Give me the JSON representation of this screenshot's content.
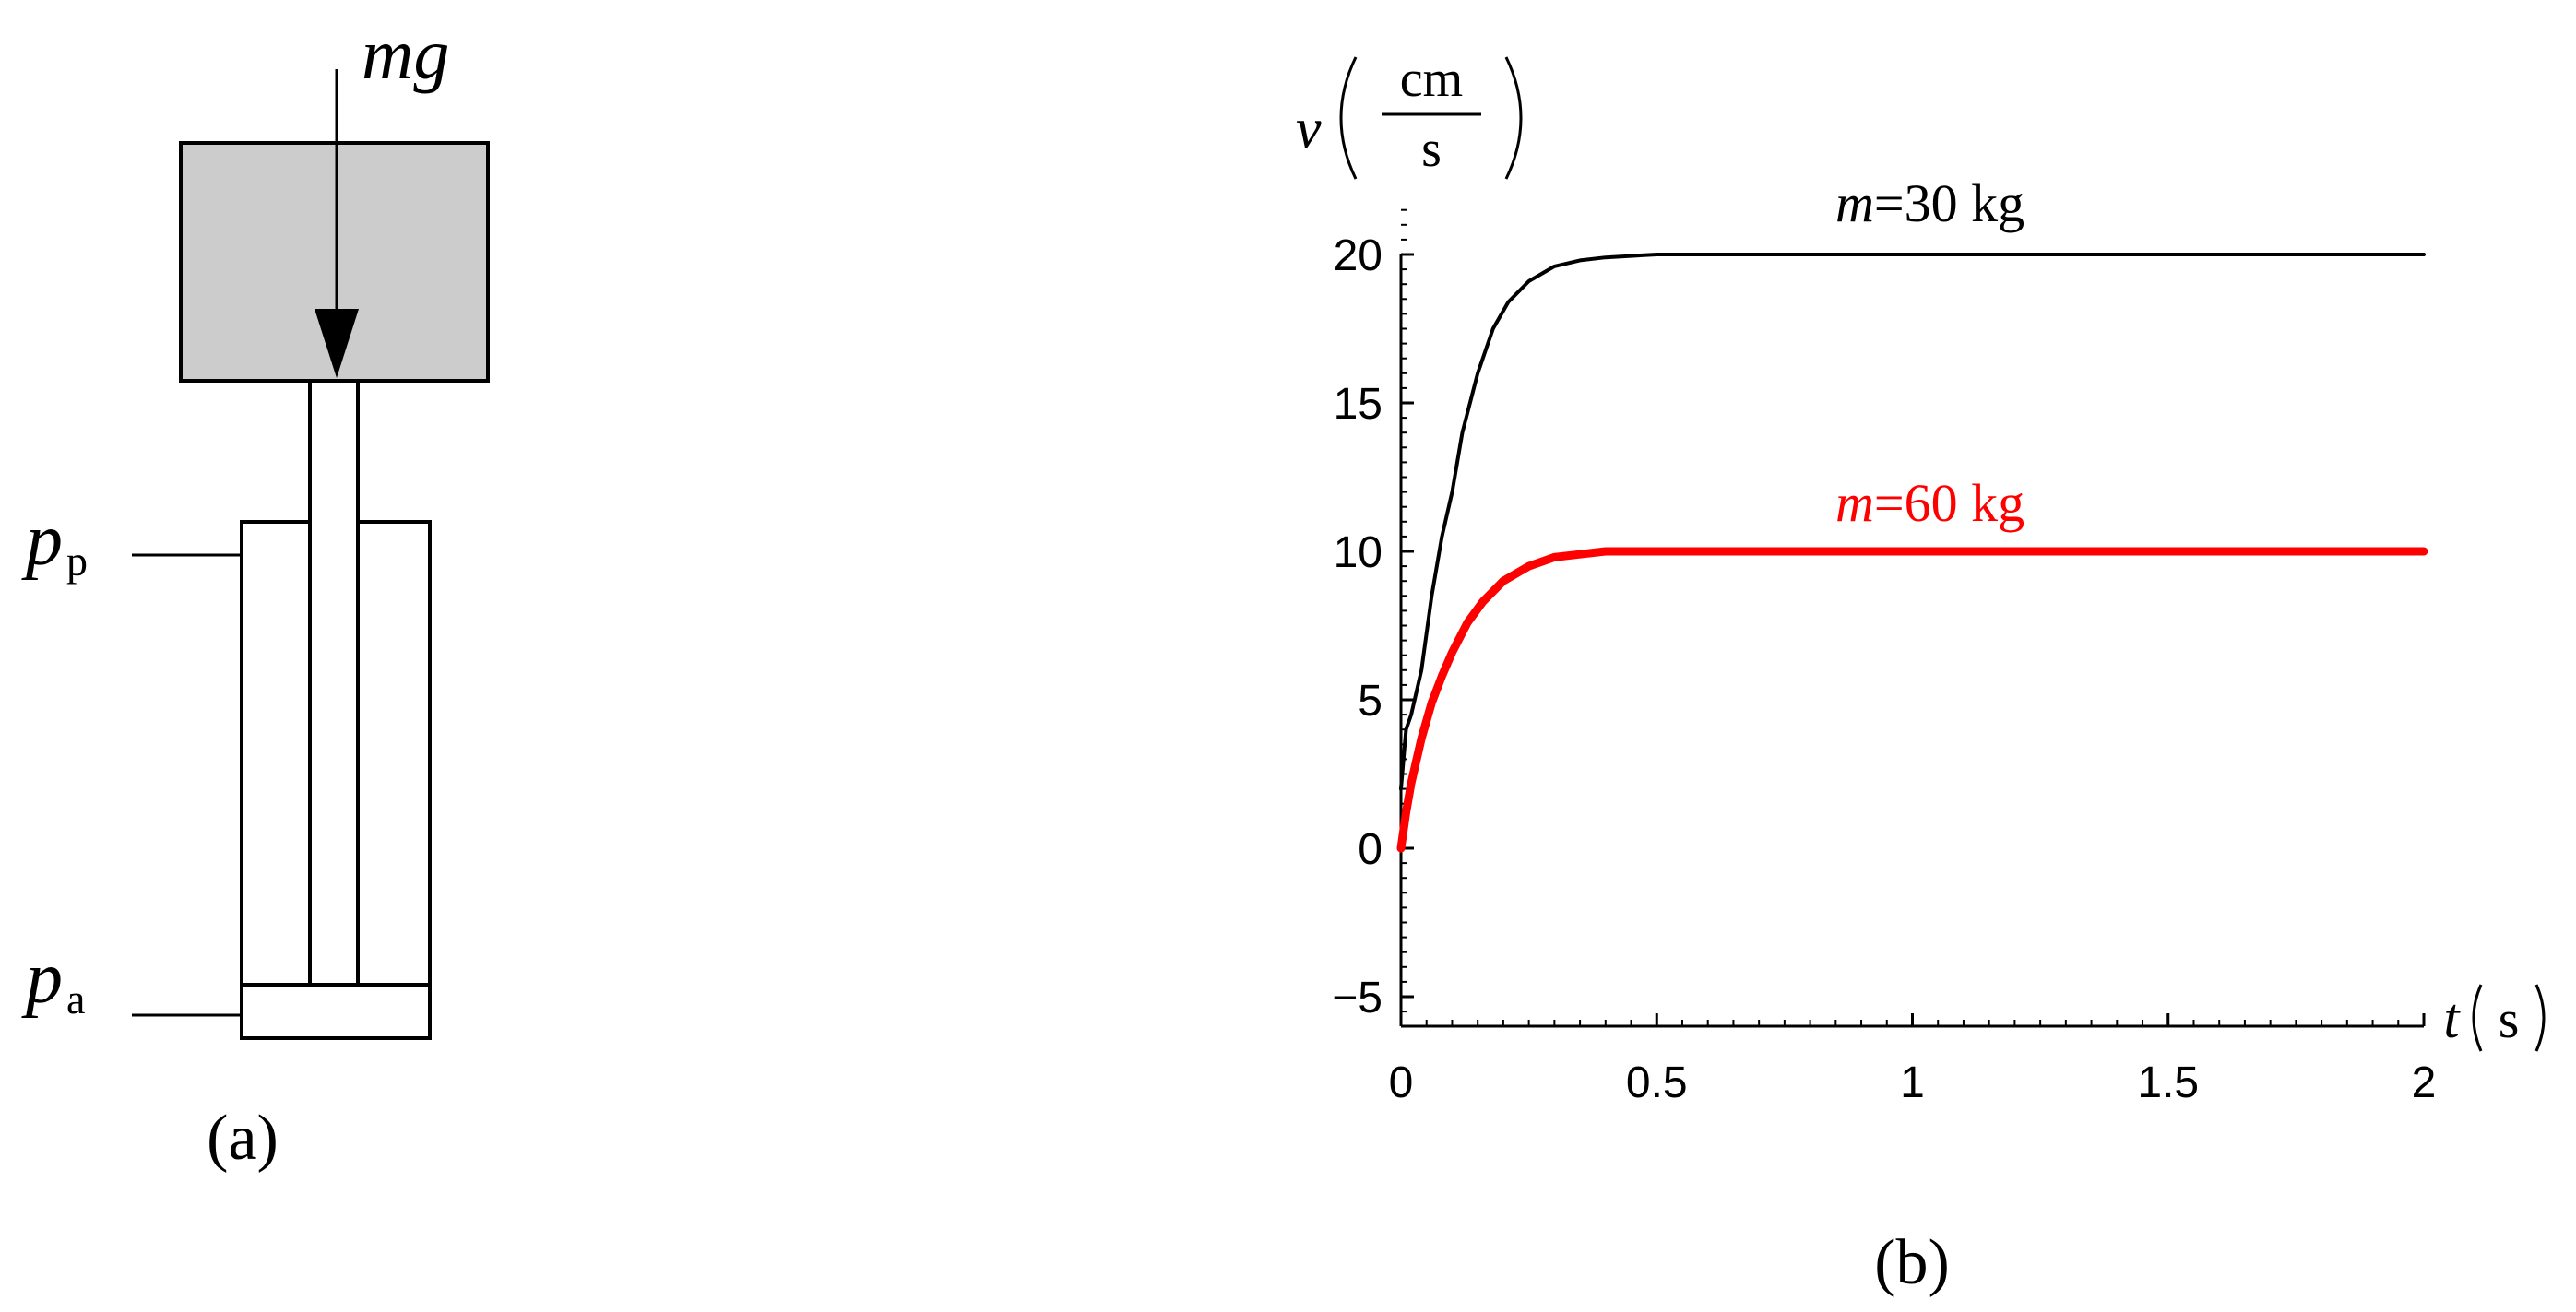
{
  "diagram": {
    "force_label": "mg",
    "pressure_top_symbol": "p",
    "pressure_top_sub": "p",
    "pressure_bottom_symbol": "p",
    "pressure_bottom_sub": "a",
    "panel_label": "(a)"
  },
  "chart_panel": {
    "panel_label": "(b)",
    "y_symbol": "v",
    "y_unit_num": "cm",
    "y_unit_den": "s",
    "x_symbol": "t",
    "x_unit": "s"
  },
  "chart_data": {
    "type": "line",
    "xlim": [
      0,
      2
    ],
    "ylim": [
      -6,
      22
    ],
    "x_ticks": [
      "0",
      "0.5",
      "1",
      "1.5",
      "2"
    ],
    "y_ticks": [
      "−5",
      "0",
      "5",
      "10",
      "15",
      "20"
    ],
    "grid": false,
    "series": [
      {
        "name": "m=30 kg",
        "label_m": "m",
        "label_rest": "=30 kg",
        "color": "#000000",
        "x": [
          0,
          0.01,
          0.02,
          0.04,
          0.06,
          0.08,
          0.1,
          0.12,
          0.15,
          0.18,
          0.21,
          0.25,
          0.3,
          0.35,
          0.4,
          0.5,
          0.6,
          0.8,
          1.0,
          1.5,
          2.0
        ],
        "y": [
          2,
          4,
          4.5,
          6,
          8.5,
          10.5,
          12,
          14,
          16,
          17.5,
          18.4,
          19.1,
          19.6,
          19.8,
          19.9,
          20,
          20,
          20,
          20,
          20,
          20
        ]
      },
      {
        "name": "m=60 kg",
        "label_m": "m",
        "label_rest": "=60 kg",
        "color": "#ff0000",
        "x": [
          0,
          0.01,
          0.02,
          0.04,
          0.06,
          0.08,
          0.1,
          0.13,
          0.16,
          0.2,
          0.25,
          0.3,
          0.35,
          0.4,
          0.5,
          0.7,
          1.0,
          1.5,
          2.0
        ],
        "y": [
          0,
          1.2,
          2.2,
          3.7,
          4.9,
          5.8,
          6.6,
          7.6,
          8.3,
          9.0,
          9.5,
          9.8,
          9.9,
          10,
          10,
          10,
          10,
          10,
          10
        ]
      }
    ]
  }
}
